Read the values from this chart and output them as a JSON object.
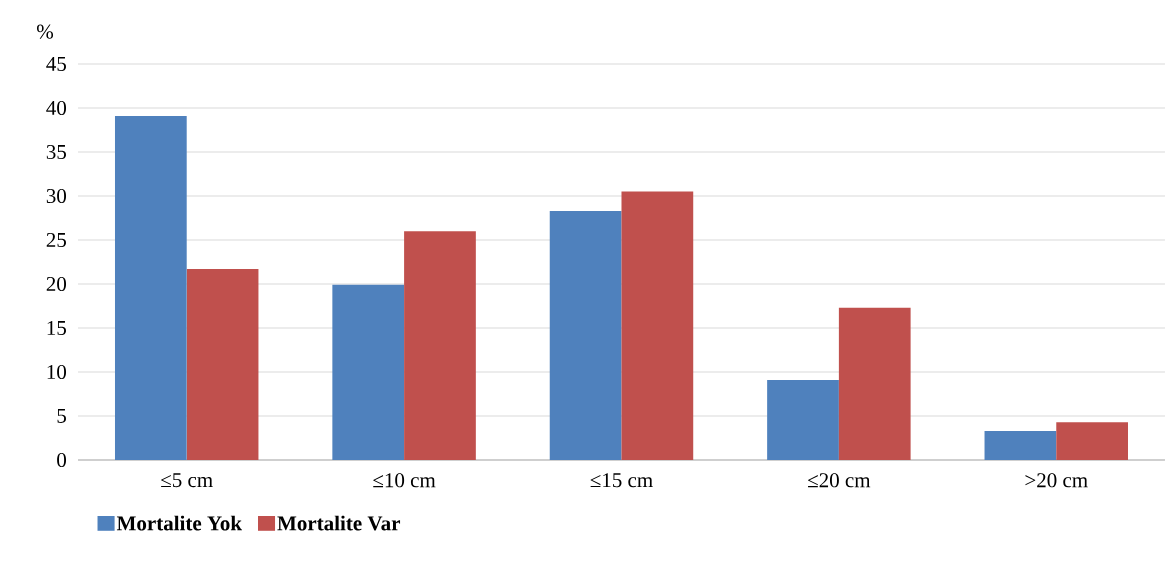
{
  "chart_data": {
    "type": "bar",
    "ylabel": "%",
    "categories": [
      "≤5 cm",
      "≤10 cm",
      "≤15 cm",
      "≤20 cm",
      ">20 cm"
    ],
    "series": [
      {
        "name": "Mortalite Yok",
        "color": "#4f81bd",
        "values": [
          39.1,
          19.9,
          28.3,
          9.1,
          3.3
        ]
      },
      {
        "name": "Mortalite Var",
        "color": "#c0504d",
        "values": [
          21.7,
          26.0,
          30.5,
          17.3,
          4.3
        ]
      }
    ],
    "ylim": [
      0,
      45
    ],
    "yticks": [
      0,
      5,
      10,
      15,
      20,
      25,
      30,
      35,
      40,
      45
    ],
    "grid": "y",
    "legend": "bottom left"
  }
}
